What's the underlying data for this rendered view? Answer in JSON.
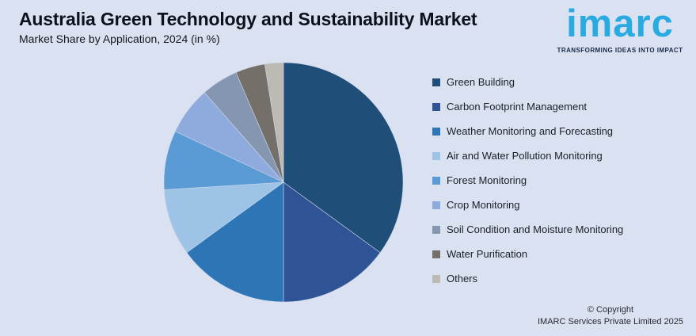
{
  "page": {
    "background_color": "#dae2f1"
  },
  "header": {
    "title": "Australia Green Technology and Sustainability Market",
    "subtitle": "Market Share by Application, 2024 (in %)"
  },
  "logo": {
    "wordmark": "imarc",
    "tagline": "TRANSFORMING IDEAS INTO IMPACT",
    "brand_color": "#29abe2",
    "tagline_color": "#19294b"
  },
  "footer": {
    "line1": "© Copyright",
    "line2": "IMARC Services Private Limited 2025"
  },
  "chart_data": {
    "type": "pie",
    "title": "Australia Green Technology and Sustainability Market",
    "subtitle": "Market Share by Application, 2024 (in %)",
    "unit": "%",
    "start_angle_deg": 0,
    "direction": "clockwise",
    "legend_position": "right",
    "data_labels_shown": false,
    "slices": [
      {
        "label": "Green Building",
        "value": 35,
        "color": "#1f4e79"
      },
      {
        "label": "Carbon Footprint Management",
        "value": 15,
        "color": "#2f5496"
      },
      {
        "label": "Weather Monitoring and Forecasting",
        "value": 15,
        "color": "#2e75b6"
      },
      {
        "label": "Air and Water Pollution Monitoring",
        "value": 9,
        "color": "#9dc3e6"
      },
      {
        "label": "Forest Monitoring",
        "value": 8,
        "color": "#5b9bd5"
      },
      {
        "label": "Crop Monitoring",
        "value": 6.5,
        "color": "#8faadc"
      },
      {
        "label": "Soil Condition and Moisture Monitoring",
        "value": 5,
        "color": "#8496b0"
      },
      {
        "label": "Water Purification",
        "value": 4,
        "color": "#746f69"
      },
      {
        "label": "Others",
        "value": 2.5,
        "color": "#bdb9b3"
      }
    ]
  }
}
